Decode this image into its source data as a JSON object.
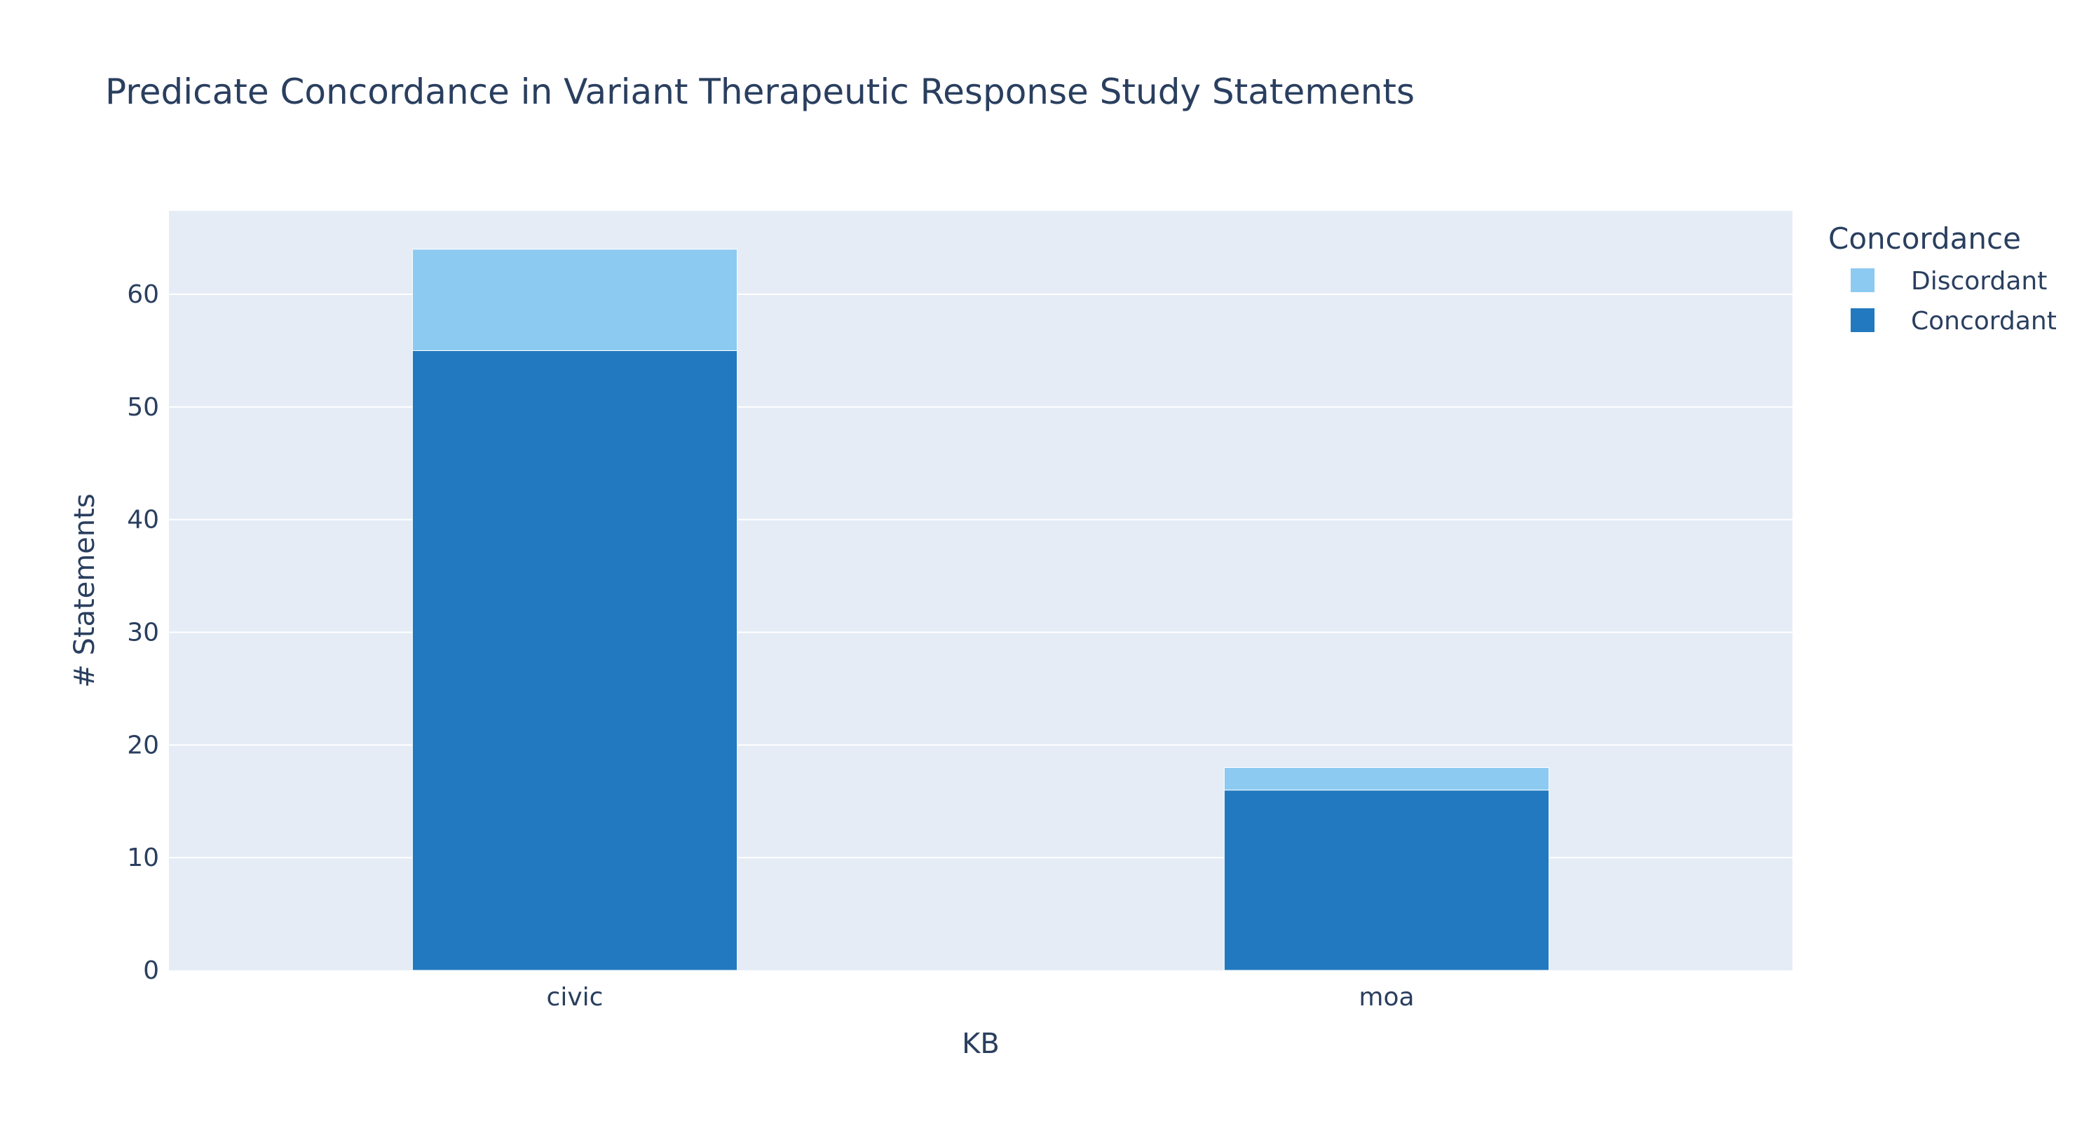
{
  "chart_data": {
    "type": "bar",
    "barmode": "stack",
    "title": "Predicate Concordance in Variant Therapeutic Response Study Statements",
    "xlabel": "KB",
    "ylabel": "# Statements",
    "categories": [
      "civic",
      "moa"
    ],
    "series": [
      {
        "name": "Concordant",
        "values": [
          55,
          16
        ],
        "color": "#2279bf"
      },
      {
        "name": "Discordant",
        "values": [
          9,
          2
        ],
        "color": "#8ccaf2"
      }
    ],
    "ylim": [
      0,
      67.4
    ],
    "yticks": [
      0,
      10,
      20,
      30,
      40,
      50,
      60
    ],
    "grid": true,
    "plot_background": "#e5ecf6",
    "legend": {
      "title": "Concordance",
      "placement": "top-right",
      "order": [
        "Discordant",
        "Concordant"
      ]
    }
  }
}
